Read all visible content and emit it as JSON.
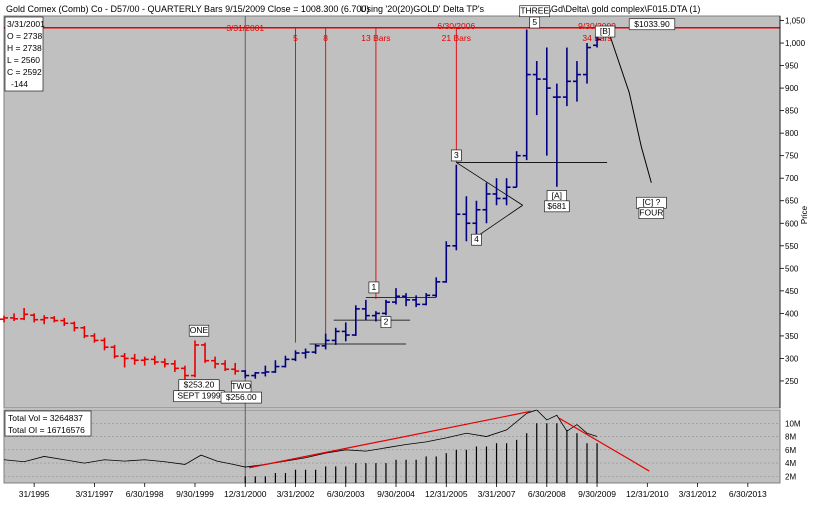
{
  "header": {
    "left": "Gold Comex (Comb) Co - D57/00 - QUARTERLY Bars  9/15/2009 Close = 1008.300 (6.700)",
    "center": "Using '20(20)GOLD' Delta TP's",
    "right": "File: C:\\Gd\\Delta\\ gold complex\\F015.DTA (1)"
  },
  "info_box": {
    "date": "3/31/2001",
    "open": "O = 2738",
    "high": "H = 2738",
    "low": "L = 2560",
    "close": "C = 2592",
    "change": "-144"
  },
  "volume_box": {
    "total_vol": "Total Vol = 3264837",
    "total_oi": "Total OI  = 16716576"
  },
  "colors": {
    "background": "#c0c0c0",
    "bars_early": "#e60000",
    "bars_late": "#000080",
    "markers": "#e60000",
    "projection": "#000000"
  },
  "chart_data": {
    "type": "ohlc-bar",
    "price_axis": {
      "label": "Price",
      "min": 190,
      "max": 1060,
      "ticks": [
        250,
        300,
        350,
        400,
        450,
        500,
        550,
        600,
        650,
        700,
        750,
        800,
        850,
        900,
        950,
        1000,
        1050
      ],
      "tick_labels": [
        "250",
        "300",
        "350",
        "400",
        "450",
        "500",
        "550",
        "600",
        "650",
        "700",
        "750",
        "800",
        "850",
        "900",
        "950",
        "1,000",
        "1,050"
      ]
    },
    "time_axis": {
      "start": 1995.0,
      "end": 2014.3,
      "ticks": [
        {
          "t": 1995.75,
          "label": "31/1995"
        },
        {
          "t": 1997.25,
          "label": "3/31/1997"
        },
        {
          "t": 1998.5,
          "label": "6/30/1998"
        },
        {
          "t": 1999.75,
          "label": "9/30/1999"
        },
        {
          "t": 2001.0,
          "label": "12/31/2000"
        },
        {
          "t": 2002.25,
          "label": "3/31/2002"
        },
        {
          "t": 2003.5,
          "label": "6/30/2003"
        },
        {
          "t": 2004.75,
          "label": "9/30/2004"
        },
        {
          "t": 2006.0,
          "label": "12/31/2005"
        },
        {
          "t": 2007.25,
          "label": "3/31/2007"
        },
        {
          "t": 2008.5,
          "label": "6/30/2008"
        },
        {
          "t": 2009.75,
          "label": "9/30/2009"
        },
        {
          "t": 2011.0,
          "label": "12/31/2010"
        },
        {
          "t": 2012.25,
          "label": "3/31/2012"
        },
        {
          "t": 2013.5,
          "label": "6/30/2013"
        }
      ]
    },
    "volume_axis": {
      "min": 1,
      "max": 12,
      "ticks": [
        2,
        4,
        6,
        8,
        10
      ],
      "tick_labels": [
        "2M",
        "4M",
        "6M",
        "8M",
        "10M"
      ]
    },
    "color_switch_t": 2001.0,
    "bars": [
      [
        1995.0,
        387,
        395,
        380,
        390
      ],
      [
        1995.25,
        390,
        400,
        383,
        388
      ],
      [
        1995.5,
        388,
        412,
        385,
        398
      ],
      [
        1995.75,
        396,
        400,
        380,
        386
      ],
      [
        1996.0,
        386,
        396,
        376,
        390
      ],
      [
        1996.25,
        390,
        394,
        380,
        384
      ],
      [
        1996.5,
        384,
        390,
        372,
        378
      ],
      [
        1996.75,
        378,
        382,
        360,
        368
      ],
      [
        1997.0,
        368,
        372,
        345,
        350
      ],
      [
        1997.25,
        350,
        356,
        335,
        340
      ],
      [
        1997.5,
        340,
        346,
        318,
        325
      ],
      [
        1997.75,
        325,
        330,
        300,
        305
      ],
      [
        1998.0,
        305,
        312,
        280,
        300
      ],
      [
        1998.25,
        300,
        310,
        286,
        296
      ],
      [
        1998.5,
        296,
        304,
        284,
        298
      ],
      [
        1998.75,
        298,
        306,
        286,
        292
      ],
      [
        1999.0,
        292,
        300,
        280,
        288
      ],
      [
        1999.25,
        288,
        296,
        270,
        278
      ],
      [
        1999.5,
        278,
        284,
        254,
        262
      ],
      [
        1999.75,
        262,
        340,
        258,
        330
      ],
      [
        2000.0,
        330,
        335,
        290,
        295
      ],
      [
        2000.25,
        295,
        304,
        278,
        288
      ],
      [
        2000.5,
        288,
        296,
        272,
        276
      ],
      [
        2000.75,
        276,
        290,
        264,
        272
      ],
      [
        2001.0,
        272,
        274,
        256,
        262
      ],
      [
        2001.25,
        262,
        270,
        255,
        268
      ],
      [
        2001.5,
        268,
        284,
        260,
        270
      ],
      [
        2001.75,
        270,
        296,
        268,
        282
      ],
      [
        2002.0,
        282,
        306,
        280,
        298
      ],
      [
        2002.25,
        298,
        318,
        294,
        312
      ],
      [
        2002.5,
        312,
        322,
        300,
        314
      ],
      [
        2002.75,
        314,
        332,
        310,
        328
      ],
      [
        2003.0,
        328,
        355,
        320,
        340
      ],
      [
        2003.25,
        340,
        368,
        330,
        360
      ],
      [
        2003.5,
        360,
        380,
        338,
        352
      ],
      [
        2003.75,
        352,
        418,
        350,
        410
      ],
      [
        2004.0,
        410,
        430,
        385,
        395
      ],
      [
        2004.25,
        395,
        405,
        382,
        400
      ],
      [
        2004.5,
        400,
        430,
        396,
        425
      ],
      [
        2004.75,
        425,
        456,
        420,
        438
      ],
      [
        2005.0,
        438,
        445,
        416,
        430
      ],
      [
        2005.25,
        430,
        440,
        414,
        420
      ],
      [
        2005.5,
        420,
        445,
        418,
        440
      ],
      [
        2005.75,
        440,
        480,
        436,
        470
      ],
      [
        2006.0,
        470,
        560,
        468,
        550
      ],
      [
        2006.25,
        550,
        730,
        540,
        620
      ],
      [
        2006.5,
        620,
        660,
        560,
        600
      ],
      [
        2006.75,
        600,
        650,
        570,
        630
      ],
      [
        2007.0,
        630,
        690,
        600,
        665
      ],
      [
        2007.25,
        665,
        700,
        640,
        655
      ],
      [
        2007.5,
        655,
        700,
        640,
        680
      ],
      [
        2007.75,
        680,
        760,
        680,
        750
      ],
      [
        2008.0,
        750,
        1030,
        740,
        930
      ],
      [
        2008.25,
        930,
        960,
        840,
        920
      ],
      [
        2008.5,
        920,
        990,
        750,
        900
      ],
      [
        2008.75,
        880,
        910,
        681,
        880
      ],
      [
        2009.0,
        880,
        990,
        860,
        915
      ],
      [
        2009.25,
        915,
        960,
        870,
        930
      ],
      [
        2009.5,
        930,
        1000,
        910,
        990
      ],
      [
        2009.75,
        995,
        1030,
        990,
        1008
      ]
    ],
    "markers": [
      {
        "t": 2001.0,
        "label": "3/31/2001",
        "line_top": "full"
      },
      {
        "t": 2002.25,
        "label": "5",
        "to_price": 335
      },
      {
        "t": 2003.0,
        "label": "8",
        "to_price": 352
      },
      {
        "t": 2004.25,
        "label": "13 Bars",
        "to_price": 432
      },
      {
        "t": 2006.25,
        "label": "6/30/2006",
        "label2": "21 Bars",
        "to_price": 735
      },
      {
        "t": 2009.75,
        "label": "9/30/2009",
        "label2": "34 Bars",
        "to_price": 1035
      }
    ],
    "resistance": {
      "price": 1033.9,
      "label": "$1033.90"
    },
    "wave_labels": [
      {
        "text": "ONE",
        "t": 1999.85,
        "price": 356,
        "boxed": true
      },
      {
        "text": "$253.20",
        "t": 1999.85,
        "price": 235,
        "boxed": true,
        "text2": "SEPT 1999"
      },
      {
        "text": "TWO",
        "t": 2000.9,
        "price": 232,
        "boxed": true,
        "text2": "$256.00"
      },
      {
        "text": "1",
        "t": 2004.2,
        "price": 452,
        "boxed": true
      },
      {
        "text": "2",
        "t": 2004.5,
        "price": 375,
        "boxed": true
      },
      {
        "text": "3",
        "t": 2006.25,
        "price": 745,
        "boxed": true
      },
      {
        "text": "4",
        "t": 2006.75,
        "price": 558,
        "boxed": true
      },
      {
        "text": "THREE",
        "t": 2008.2,
        "price": 1065,
        "boxed": true
      },
      {
        "text": "5",
        "t": 2008.2,
        "price": 1040,
        "boxed": true
      },
      {
        "text": "[B]",
        "t": 2009.95,
        "price": 1020,
        "boxed": true
      },
      {
        "text": "[A]",
        "t": 2008.75,
        "price": 655,
        "boxed": true
      },
      {
        "text": "$681",
        "t": 2008.75,
        "price": 632,
        "boxed": true
      },
      {
        "text": "[C] ?",
        "t": 2011.1,
        "price": 640,
        "boxed": true
      },
      {
        "text": "FOUR",
        "t": 2011.1,
        "price": 617,
        "boxed": true
      }
    ],
    "trend_lines": [
      {
        "from": [
          2002.6,
          332
        ],
        "to": [
          2005.0,
          332
        ]
      },
      {
        "from": [
          2003.2,
          385
        ],
        "to": [
          2005.1,
          385
        ]
      },
      {
        "from": [
          2004.0,
          435
        ],
        "to": [
          2005.75,
          435
        ]
      },
      {
        "from": [
          2006.25,
          735
        ],
        "to": [
          2010.0,
          735
        ]
      },
      {
        "from": [
          2006.25,
          735
        ],
        "to": [
          2007.9,
          640
        ]
      },
      {
        "from": [
          2006.75,
          570
        ],
        "to": [
          2007.9,
          640
        ]
      }
    ],
    "projection_path": [
      [
        2010.0,
        1035
      ],
      [
        2010.55,
        890
      ],
      [
        2010.85,
        770
      ],
      [
        2011.1,
        690
      ]
    ],
    "volume_bars": [
      [
        2001.0,
        2
      ],
      [
        2001.25,
        2
      ],
      [
        2001.5,
        2
      ],
      [
        2001.75,
        2.5
      ],
      [
        2002.0,
        2.5
      ],
      [
        2002.25,
        3
      ],
      [
        2002.5,
        3
      ],
      [
        2002.75,
        3
      ],
      [
        2003.0,
        3.5
      ],
      [
        2003.25,
        3.5
      ],
      [
        2003.5,
        3.5
      ],
      [
        2003.75,
        4
      ],
      [
        2004.0,
        4
      ],
      [
        2004.25,
        4
      ],
      [
        2004.5,
        4
      ],
      [
        2004.75,
        4.5
      ],
      [
        2005.0,
        4.5
      ],
      [
        2005.25,
        4.5
      ],
      [
        2005.5,
        5
      ],
      [
        2005.75,
        5
      ],
      [
        2006.0,
        5.5
      ],
      [
        2006.25,
        6
      ],
      [
        2006.5,
        6
      ],
      [
        2006.75,
        6.5
      ],
      [
        2007.0,
        6.5
      ],
      [
        2007.25,
        7
      ],
      [
        2007.5,
        7
      ],
      [
        2007.75,
        7.5
      ],
      [
        2008.0,
        8.5
      ],
      [
        2008.25,
        10
      ],
      [
        2008.5,
        10
      ],
      [
        2008.75,
        10
      ],
      [
        2009.0,
        9
      ],
      [
        2009.25,
        8.5
      ],
      [
        2009.5,
        7
      ],
      [
        2009.75,
        7
      ]
    ],
    "oi_line": [
      [
        1995.0,
        4.5
      ],
      [
        1995.5,
        4.2
      ],
      [
        1996.0,
        5
      ],
      [
        1996.5,
        4.5
      ],
      [
        1997.0,
        4
      ],
      [
        1997.5,
        4.5
      ],
      [
        1998.0,
        4.3
      ],
      [
        1998.5,
        4.5
      ],
      [
        1999.0,
        4.2
      ],
      [
        1999.5,
        3.8
      ],
      [
        1999.9,
        5.2
      ],
      [
        2000.3,
        4.3
      ],
      [
        2000.7,
        3.8
      ],
      [
        2001.0,
        3.4
      ],
      [
        2001.5,
        3.8
      ],
      [
        2002.0,
        4.3
      ],
      [
        2002.5,
        4.8
      ],
      [
        2003.0,
        5.5
      ],
      [
        2003.5,
        6
      ],
      [
        2004.0,
        5.8
      ],
      [
        2004.5,
        6.3
      ],
      [
        2005.0,
        6.8
      ],
      [
        2005.5,
        7.2
      ],
      [
        2006.0,
        7.8
      ],
      [
        2006.5,
        8.5
      ],
      [
        2007.0,
        8
      ],
      [
        2007.5,
        9
      ],
      [
        2008.0,
        11.5
      ],
      [
        2008.25,
        12
      ],
      [
        2008.5,
        10.5
      ],
      [
        2008.75,
        11.2
      ],
      [
        2009.0,
        8.8
      ],
      [
        2009.25,
        9.8
      ],
      [
        2009.5,
        8.5
      ],
      [
        2009.75,
        8
      ]
    ],
    "volume_trends": [
      {
        "from": [
          2001.1,
          3.3
        ],
        "to": [
          2008.1,
          11.8
        ]
      },
      {
        "from": [
          2008.8,
          10.8
        ],
        "to": [
          2011.05,
          2.8
        ]
      }
    ],
    "cursor_t": 2001.0
  }
}
